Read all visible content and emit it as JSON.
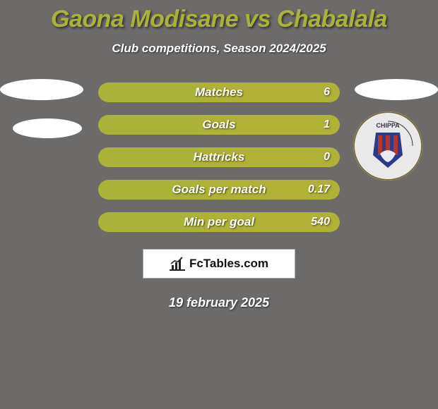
{
  "background_color": "#6d6a6a",
  "title": {
    "text": "Gaona Modisane vs Chabalala",
    "color": "#aab239",
    "fontsize": 34
  },
  "subtitle": {
    "text": "Club competitions, Season 2024/2025",
    "color": "#ffffff",
    "fontsize": 17
  },
  "left_shapes": {
    "ellipse1_color": "#ffffff",
    "ellipse2_color": "#ffffff"
  },
  "right_shapes": {
    "ellipse1_color": "#ffffff",
    "crest_bg": "#e9e9e9",
    "crest_ring_text": "CHIPPA",
    "crest_accent1": "#b4362f",
    "crest_accent2": "#2c3a8a",
    "crest_accent3": "#ffffff"
  },
  "bar_colors": {
    "left": "#aab239",
    "right": "#b0b137",
    "label_color": "#ffffff",
    "value_color": "#ffffff"
  },
  "stats": [
    {
      "label": "Matches",
      "left_value": "",
      "right_value": "6",
      "left_percent": 42
    },
    {
      "label": "Goals",
      "left_value": "",
      "right_value": "1",
      "left_percent": 42
    },
    {
      "label": "Hattricks",
      "left_value": "",
      "right_value": "0",
      "left_percent": 42
    },
    {
      "label": "Goals per match",
      "left_value": "",
      "right_value": "0.17",
      "left_percent": 42
    },
    {
      "label": "Min per goal",
      "left_value": "",
      "right_value": "540",
      "left_percent": 42
    }
  ],
  "badge": {
    "site_text": "FcTables.com",
    "icon_color": "#222222"
  },
  "date": {
    "text": "19 february 2025",
    "color": "#ffffff"
  }
}
